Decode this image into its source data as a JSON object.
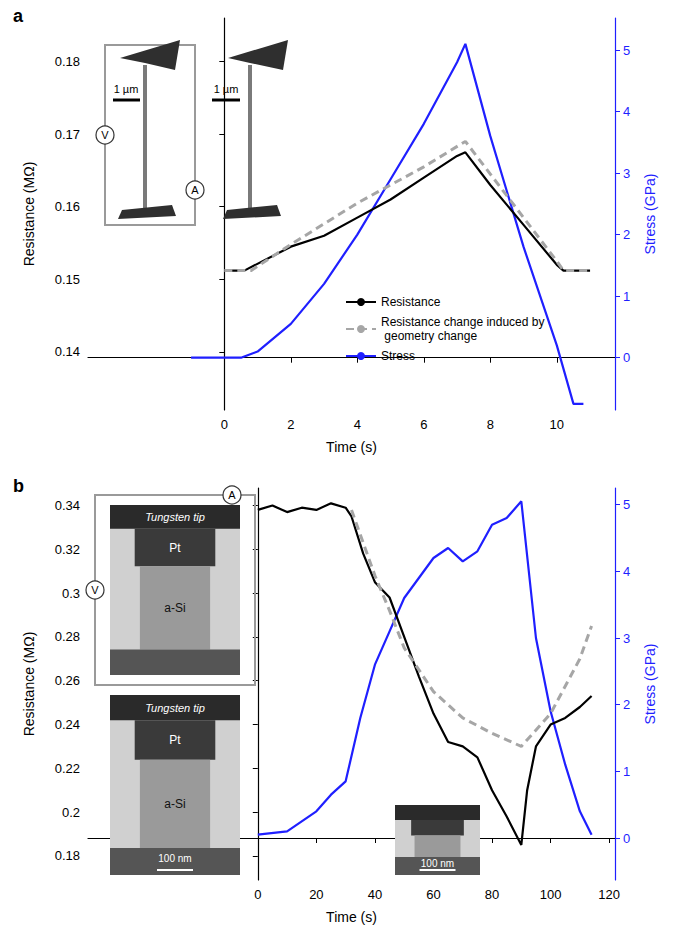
{
  "chart_data": [
    {
      "type": "line",
      "title": "a",
      "x_label": "Time (s)",
      "y_label": "Resistance (MΩ)",
      "y2_label": "Stress (GPa)",
      "xlim": [
        -4.1,
        11.75
      ],
      "xticks": [
        0,
        2,
        4,
        6,
        8,
        10
      ],
      "ylim": [
        0.132,
        0.186
      ],
      "yticks": [
        0.14,
        0.15,
        0.16,
        0.17,
        0.18
      ],
      "y2lim": [
        -0.85,
        5.52
      ],
      "y2ticks": [
        0,
        1,
        2,
        3,
        4,
        5
      ],
      "grid": false,
      "legend": "lower center",
      "annotations": {
        "scale_bar": "1 µm",
        "meters": [
          "V",
          "A"
        ]
      },
      "series": [
        {
          "name": "Resistance",
          "color": "#000000",
          "line_style": "solid",
          "x": [
            0,
            0.6,
            2,
            3,
            4,
            5,
            6,
            7,
            7.25,
            8,
            9,
            10,
            10.2,
            11
          ],
          "values": [
            0.1512,
            0.1512,
            0.1545,
            0.156,
            0.1585,
            0.161,
            0.164,
            0.167,
            0.1675,
            0.163,
            0.1575,
            0.152,
            0.1512,
            0.1512
          ]
        },
        {
          "name": "Resistance change induced by geometry change",
          "color": "#a6a6a6",
          "line_style": "dashed",
          "x": [
            0,
            0.8,
            2,
            4,
            6,
            7.25,
            8,
            9,
            10,
            10.2,
            11
          ],
          "values": [
            0.1512,
            0.1512,
            0.1548,
            0.1605,
            0.1655,
            0.169,
            0.1645,
            0.1585,
            0.1525,
            0.1512,
            0.1512
          ]
        },
        {
          "name": "Stress",
          "color": "#1f1fff",
          "line_style": "solid",
          "axis": "y2",
          "x": [
            -1,
            0,
            0.5,
            1,
            2,
            3,
            4,
            5,
            6,
            7,
            7.25,
            8,
            9,
            10,
            10.5,
            10.8
          ],
          "values": [
            0,
            0,
            0,
            0.1,
            0.55,
            1.2,
            2.0,
            2.9,
            3.8,
            4.8,
            5.1,
            3.6,
            1.8,
            0.2,
            -0.75,
            -0.75
          ]
        }
      ]
    },
    {
      "type": "line",
      "title": "b",
      "x_label": "Time (s)",
      "y_label": "Resistance (MΩ)",
      "y2_label": "Stress (GPa)",
      "xlim": [
        -58,
        122
      ],
      "xticks": [
        0,
        20,
        40,
        60,
        80,
        100,
        120
      ],
      "ylim": [
        0.169,
        0.348
      ],
      "yticks": [
        0.18,
        0.2,
        0.22,
        0.24,
        0.26,
        0.28,
        0.3,
        0.32,
        0.34
      ],
      "y2lim": [
        -0.63,
        5.25
      ],
      "y2ticks": [
        0,
        1,
        2,
        3,
        4,
        5
      ],
      "grid": false,
      "annotations": {
        "image_labels": [
          "Tungsten tip",
          "Pt",
          "a-Si"
        ],
        "scale_bar": "100 nm",
        "meters": [
          "V",
          "A"
        ]
      },
      "series": [
        {
          "color": "#000000",
          "line_style": "solid",
          "x": [
            0,
            5,
            10,
            15,
            20,
            25,
            30,
            32,
            36,
            40,
            45,
            50,
            55,
            60,
            65,
            70,
            75,
            80,
            85,
            90,
            92,
            95,
            100,
            105,
            110,
            114
          ],
          "values": [
            0.338,
            0.34,
            0.337,
            0.339,
            0.338,
            0.341,
            0.339,
            0.335,
            0.318,
            0.305,
            0.298,
            0.28,
            0.262,
            0.245,
            0.232,
            0.23,
            0.225,
            0.21,
            0.198,
            0.185,
            0.21,
            0.23,
            0.24,
            0.243,
            0.248,
            0.253
          ]
        },
        {
          "color": "#a6a6a6",
          "line_style": "dashed",
          "x": [
            32,
            40,
            45,
            50,
            60,
            70,
            80,
            90,
            100,
            110,
            114
          ],
          "values": [
            0.338,
            0.308,
            0.292,
            0.275,
            0.255,
            0.243,
            0.236,
            0.23,
            0.245,
            0.27,
            0.285
          ]
        },
        {
          "color": "#1f1fff",
          "line_style": "solid",
          "axis": "y2",
          "x": [
            0,
            10,
            20,
            25,
            30,
            35,
            40,
            45,
            50,
            55,
            60,
            65,
            70,
            75,
            80,
            85,
            90,
            95,
            100,
            105,
            110,
            114
          ],
          "values": [
            0.05,
            0.1,
            0.4,
            0.65,
            0.85,
            1.8,
            2.6,
            3.1,
            3.6,
            3.9,
            4.2,
            4.35,
            4.15,
            4.3,
            4.7,
            4.8,
            5.05,
            3.0,
            1.9,
            1.1,
            0.4,
            0.05
          ]
        }
      ]
    }
  ]
}
